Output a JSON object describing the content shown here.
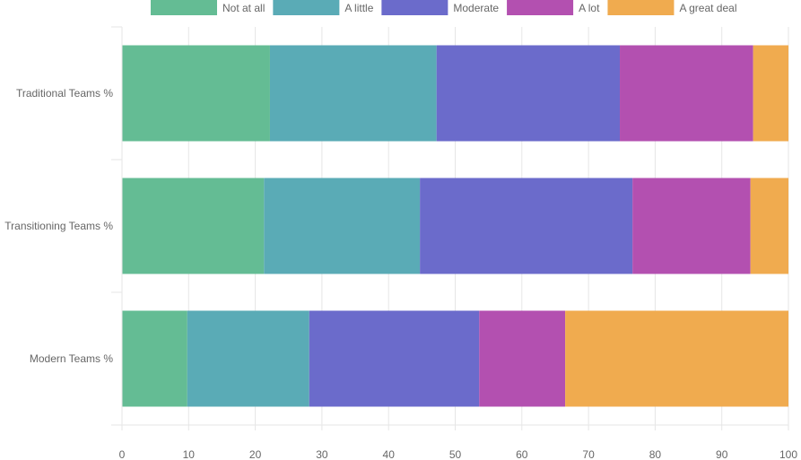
{
  "chart_data": {
    "type": "bar",
    "orientation": "horizontal",
    "stacked": true,
    "title": "",
    "xlabel": "",
    "ylabel": "",
    "xlim": [
      0,
      100
    ],
    "x_ticks": [
      0,
      10,
      20,
      30,
      40,
      50,
      60,
      70,
      80,
      90,
      100
    ],
    "grid": true,
    "legend_position": "top",
    "categories": [
      "Traditional Teams %",
      "Transitioning Teams %",
      "Modern Teams %"
    ],
    "series": [
      {
        "name": "Not at all",
        "color": "#64bc94",
        "values": [
          22.2,
          21.3,
          9.8
        ]
      },
      {
        "name": "A little",
        "color": "#5aabb6",
        "values": [
          25.0,
          23.4,
          18.3
        ]
      },
      {
        "name": "Moderate",
        "color": "#6b6bcb",
        "values": [
          27.5,
          31.9,
          25.5
        ]
      },
      {
        "name": "A lot",
        "color": "#b350b0",
        "values": [
          20.0,
          17.7,
          12.9
        ]
      },
      {
        "name": "A great deal",
        "color": "#f0ab4f",
        "values": [
          5.3,
          5.7,
          33.5
        ]
      }
    ]
  }
}
